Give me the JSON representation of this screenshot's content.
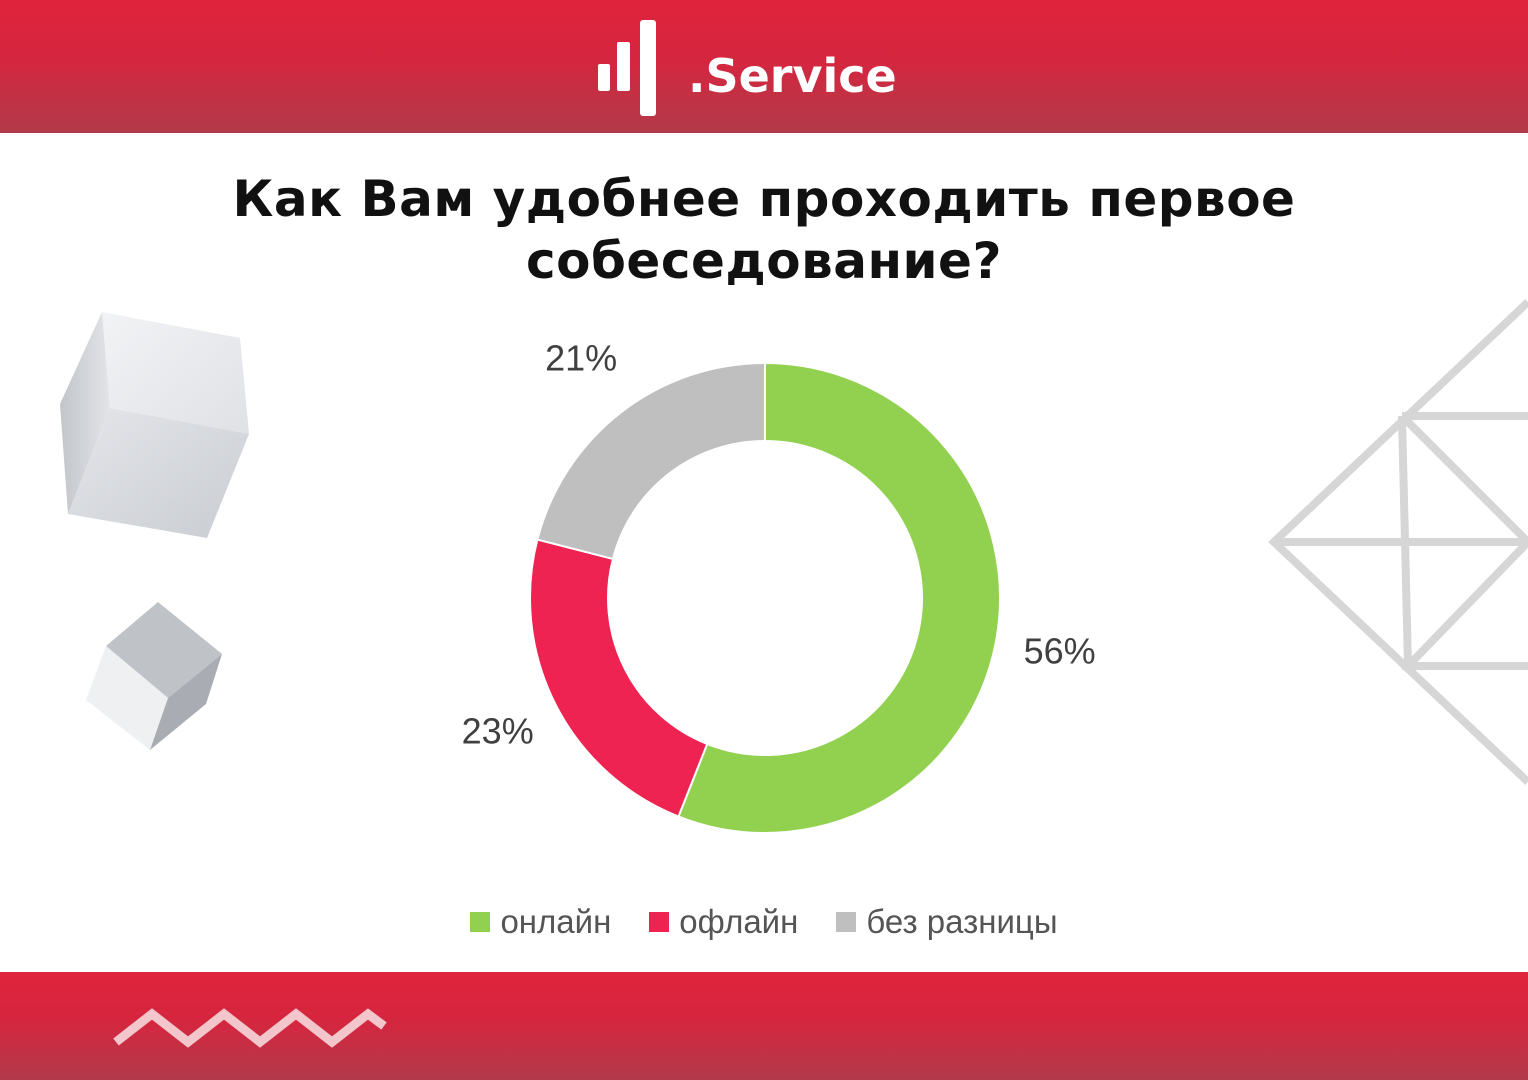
{
  "brand": {
    "logo_text": ".Service",
    "band_color": "#d9243d"
  },
  "title": "Как Вам удобнее проходить первое собеседование?",
  "chart_data": {
    "type": "pie",
    "variant": "donut",
    "title": "Как Вам удобнее проходить первое собеседование?",
    "categories": [
      "онлайн",
      "офлайн",
      "без разницы"
    ],
    "values": [
      56,
      23,
      21
    ],
    "value_labels": [
      "56%",
      "23%",
      "21%"
    ],
    "colors": [
      "#92d050",
      "#ee2352",
      "#bfbfbf"
    ],
    "start_angle_deg": 0,
    "direction": "clockwise",
    "legend": "bottom"
  },
  "decorations": {
    "cube_icons": [
      "cube-large-icon",
      "cube-small-icon"
    ],
    "diamond_lattice_icon": "diamond-lattice-icon",
    "zigzag_icon": "zigzag-icon"
  }
}
